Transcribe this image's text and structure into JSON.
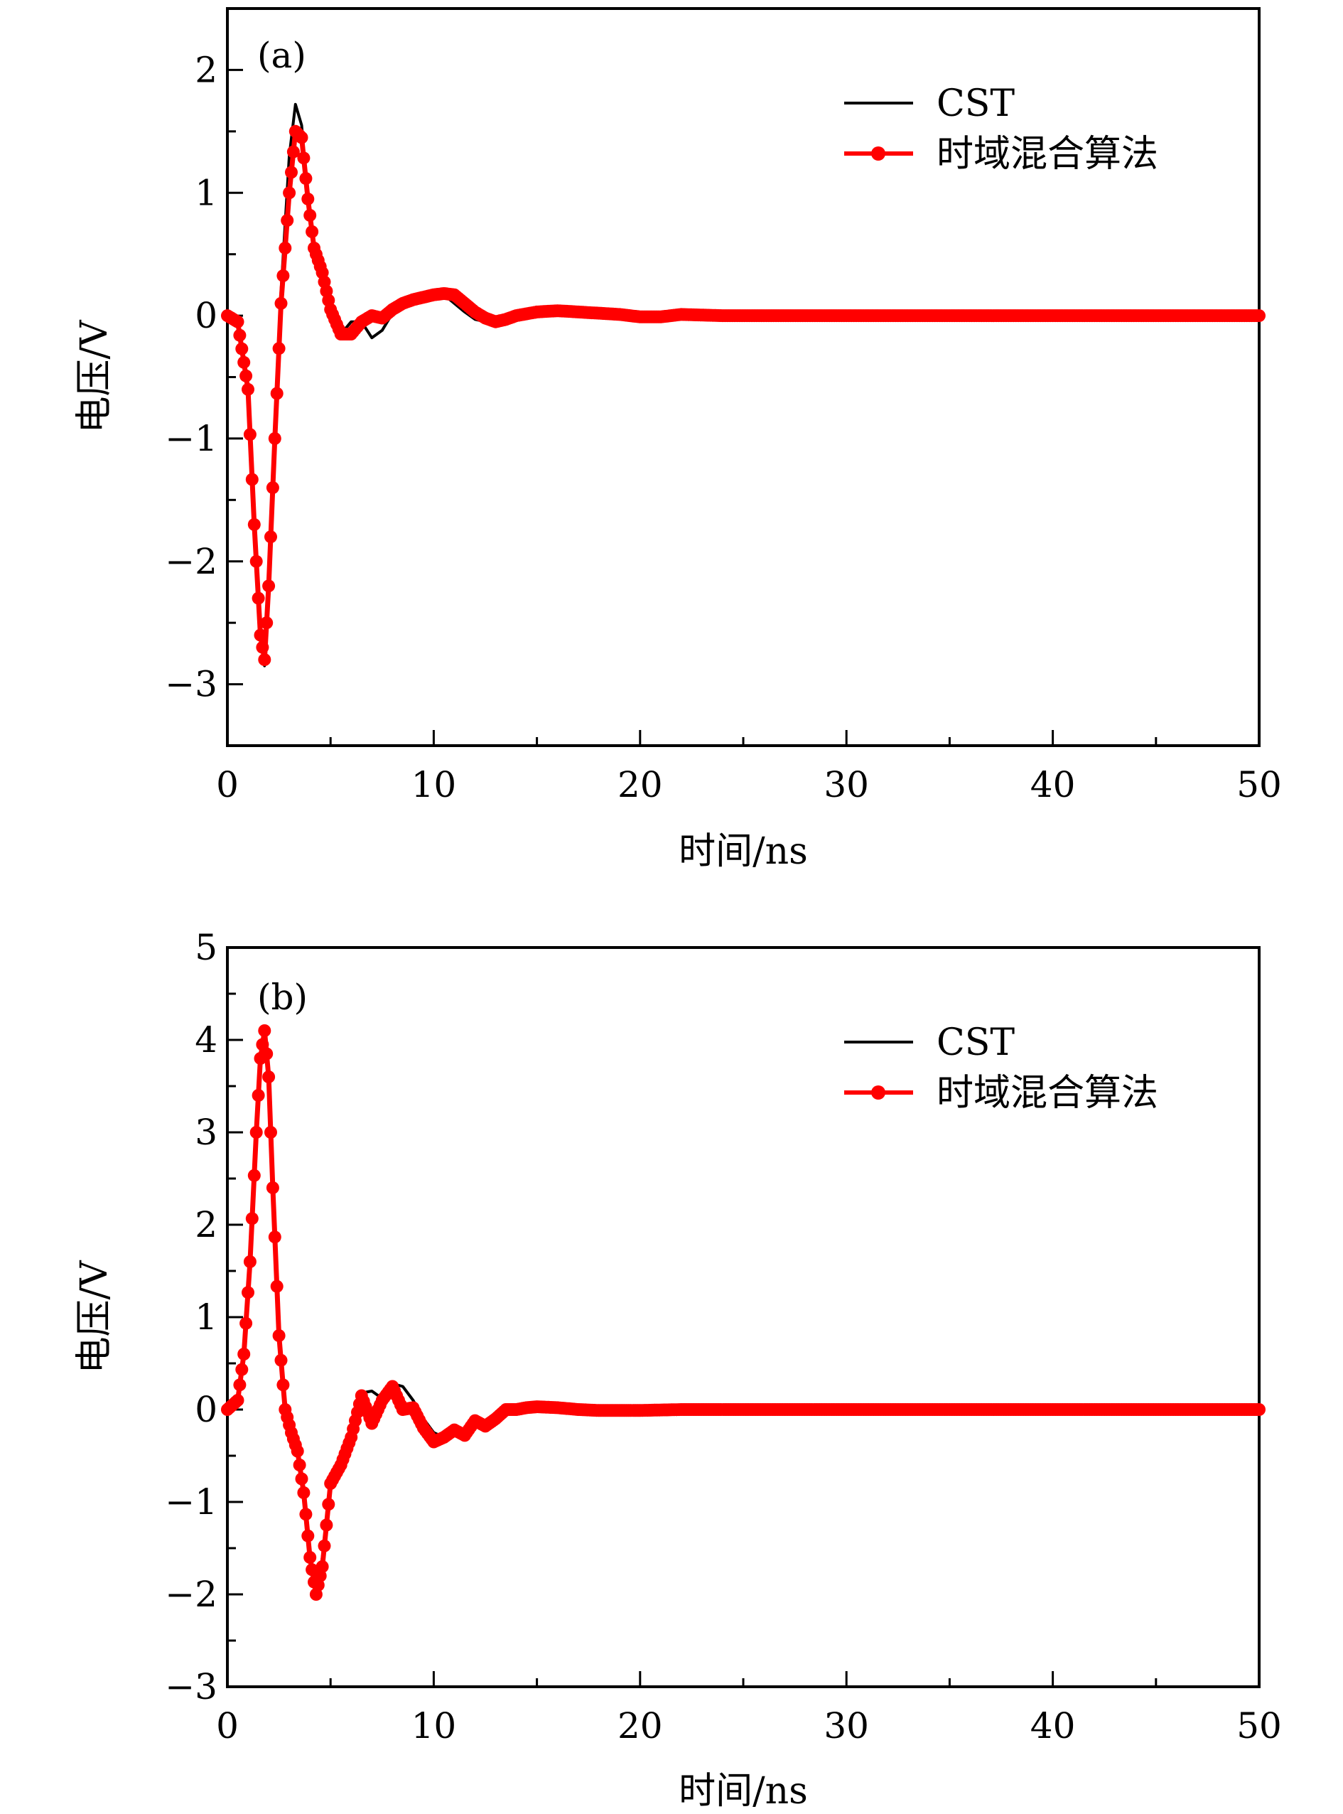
{
  "legend": {
    "cst": "CST",
    "hybrid": "时域混合算法"
  },
  "colors": {
    "cst": "#000000",
    "hybrid": "#ff0000"
  },
  "chart_data": [
    {
      "type": "line",
      "panel_label": "(a)",
      "xlabel": "时间/ns",
      "ylabel": "电压/V",
      "xlim": [
        0,
        50
      ],
      "ylim": [
        -3.5,
        2.5
      ],
      "xticks": [
        0,
        10,
        20,
        30,
        40,
        50
      ],
      "yticks": [
        -3,
        -2,
        -1,
        0,
        1,
        2
      ],
      "xtick_labels": [
        "0",
        "10",
        "20",
        "30",
        "40",
        "50"
      ],
      "ytick_labels": [
        "−3",
        "−2",
        "−1",
        "0",
        "1",
        "2"
      ],
      "legend_position": "top-right",
      "series": [
        {
          "name": "CST",
          "x": [
            0,
            0.5,
            1.0,
            1.3,
            1.6,
            1.8,
            2.0,
            2.3,
            2.6,
            3.0,
            3.3,
            3.6,
            3.9,
            4.2,
            4.6,
            5.0,
            5.5,
            6.0,
            6.5,
            7.0,
            7.5,
            8.0,
            8.5,
            9.0,
            9.5,
            10.0,
            10.5,
            11.0,
            11.5,
            12.0,
            12.5,
            13.0,
            13.5,
            14.0,
            15.0,
            16.0,
            17.0,
            18.0,
            19.0,
            20.0,
            21.0,
            22.0,
            24.0,
            26.0,
            28.0,
            30.0,
            35.0,
            40.0,
            45.0,
            50.0
          ],
          "y": [
            0,
            -0.05,
            -0.6,
            -1.6,
            -2.5,
            -2.85,
            -2.2,
            -1.0,
            0.2,
            1.3,
            1.72,
            1.55,
            0.95,
            0.6,
            0.35,
            0.05,
            -0.15,
            -0.05,
            -0.05,
            -0.18,
            -0.12,
            0.02,
            0.1,
            0.15,
            0.17,
            0.18,
            0.17,
            0.1,
            0.03,
            -0.03,
            -0.05,
            -0.04,
            -0.02,
            0.02,
            0.03,
            0.03,
            0.02,
            0.01,
            0.0,
            -0.01,
            0.0,
            0.01,
            0.0,
            0.0,
            0.0,
            0.0,
            0.0,
            0.0,
            0.0,
            0.0
          ]
        },
        {
          "name": "时域混合算法",
          "x": [
            0,
            0.5,
            1.0,
            1.3,
            1.6,
            1.8,
            2.0,
            2.3,
            2.6,
            3.0,
            3.3,
            3.6,
            3.9,
            4.2,
            4.6,
            5.0,
            5.5,
            6.0,
            6.5,
            7.0,
            7.5,
            8.0,
            8.5,
            9.0,
            9.5,
            10.0,
            10.5,
            11.0,
            11.5,
            12.0,
            12.5,
            13.0,
            13.5,
            14.0,
            15.0,
            16.0,
            17.0,
            18.0,
            19.0,
            20.0,
            21.0,
            22.0,
            24.0,
            26.0,
            28.0,
            30.0,
            35.0,
            40.0,
            45.0,
            50.0
          ],
          "y": [
            0,
            -0.05,
            -0.6,
            -1.7,
            -2.6,
            -2.8,
            -2.2,
            -1.0,
            0.1,
            1.0,
            1.5,
            1.45,
            0.95,
            0.55,
            0.35,
            0.05,
            -0.15,
            -0.15,
            -0.05,
            0.0,
            -0.02,
            0.05,
            0.1,
            0.13,
            0.15,
            0.17,
            0.18,
            0.17,
            0.1,
            0.03,
            -0.02,
            -0.05,
            -0.03,
            0.0,
            0.03,
            0.04,
            0.03,
            0.02,
            0.01,
            -0.01,
            -0.01,
            0.01,
            0.0,
            0.0,
            0.0,
            0.0,
            0.0,
            0.0,
            0.0,
            0.0
          ]
        }
      ]
    },
    {
      "type": "line",
      "panel_label": "(b)",
      "xlabel": "时间/ns",
      "ylabel": "电压/V",
      "xlim": [
        0,
        50
      ],
      "ylim": [
        -3,
        5
      ],
      "xticks": [
        0,
        10,
        20,
        30,
        40,
        50
      ],
      "yticks": [
        -3,
        -2,
        -1,
        0,
        1,
        2,
        3,
        4,
        5
      ],
      "xtick_labels": [
        "0",
        "10",
        "20",
        "30",
        "40",
        "50"
      ],
      "ytick_labels": [
        "−3",
        "−2",
        "−1",
        "0",
        "1",
        "2",
        "3",
        "4",
        "5"
      ],
      "legend_position": "top-right",
      "series": [
        {
          "name": "CST",
          "x": [
            0,
            0.5,
            0.8,
            1.1,
            1.4,
            1.6,
            1.8,
            2.0,
            2.2,
            2.5,
            2.8,
            3.1,
            3.4,
            3.7,
            4.0,
            4.3,
            4.6,
            5.0,
            5.5,
            6.0,
            6.5,
            7.0,
            7.5,
            8.0,
            8.5,
            9.0,
            9.5,
            10.0,
            10.5,
            11.0,
            11.5,
            12.0,
            12.5,
            13.0,
            13.5,
            14.0,
            14.5,
            15.0,
            16.0,
            17.0,
            18.0,
            19.0,
            20.0,
            22.0,
            25.0,
            30.0,
            35.0,
            40.0,
            45.0,
            50.0
          ],
          "y": [
            0,
            0.1,
            0.6,
            1.6,
            3.0,
            3.8,
            4.1,
            3.6,
            2.4,
            0.8,
            -0.1,
            -0.35,
            -0.45,
            -0.9,
            -1.6,
            -2.0,
            -1.6,
            -0.8,
            -0.6,
            -0.2,
            0.18,
            0.2,
            0.12,
            0.28,
            0.25,
            0.1,
            -0.1,
            -0.25,
            -0.3,
            -0.28,
            -0.22,
            -0.18,
            -0.15,
            -0.1,
            -0.05,
            0.0,
            0.03,
            0.04,
            0.02,
            0.01,
            -0.01,
            -0.02,
            -0.01,
            0.0,
            0.0,
            0.0,
            0.0,
            0.0,
            0.0,
            0.0
          ]
        },
        {
          "name": "时域混合算法",
          "x": [
            0,
            0.5,
            0.8,
            1.1,
            1.4,
            1.6,
            1.8,
            2.0,
            2.2,
            2.5,
            2.8,
            3.1,
            3.4,
            3.7,
            4.0,
            4.3,
            4.6,
            5.0,
            5.5,
            6.0,
            6.5,
            7.0,
            7.5,
            8.0,
            8.5,
            9.0,
            9.5,
            10.0,
            10.5,
            11.0,
            11.5,
            12.0,
            12.5,
            13.0,
            13.5,
            14.0,
            14.5,
            15.0,
            16.0,
            17.0,
            18.0,
            19.0,
            20.0,
            22.0,
            25.0,
            30.0,
            35.0,
            40.0,
            45.0,
            50.0
          ],
          "y": [
            0,
            0.1,
            0.6,
            1.6,
            3.0,
            3.8,
            4.1,
            3.6,
            2.4,
            0.8,
            0.0,
            -0.25,
            -0.45,
            -0.9,
            -1.6,
            -2.0,
            -1.7,
            -0.8,
            -0.6,
            -0.3,
            0.15,
            -0.15,
            0.1,
            0.25,
            0.0,
            0.02,
            -0.2,
            -0.35,
            -0.3,
            -0.22,
            -0.28,
            -0.12,
            -0.18,
            -0.1,
            0.0,
            0.0,
            0.02,
            0.03,
            0.02,
            0.0,
            -0.01,
            -0.01,
            -0.01,
            0.0,
            0.0,
            0.0,
            0.0,
            0.0,
            0.0,
            0.0
          ]
        }
      ]
    }
  ]
}
